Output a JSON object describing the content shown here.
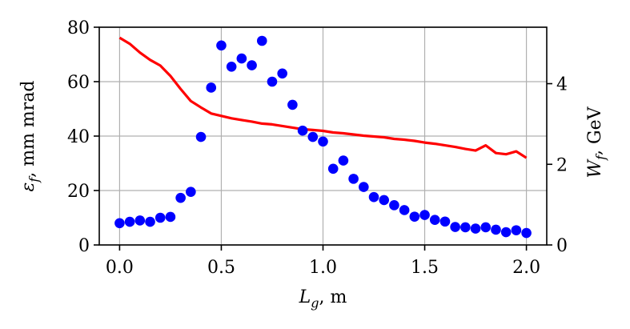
{
  "chart_data": {
    "type": "scatter",
    "grid": true,
    "x_axis": {
      "label_symbol": "L",
      "label_subscript": "g",
      "label_suffix": ", m",
      "range": [
        -0.1,
        2.1
      ],
      "ticks": [
        0.0,
        0.5,
        1.0,
        1.5,
        2.0
      ],
      "tick_labels": [
        "0.0",
        "0.5",
        "1.0",
        "1.5",
        "2.0"
      ]
    },
    "y_axis_left": {
      "label_symbol": "ε",
      "label_subscript": "f",
      "label_suffix": ", mm mrad",
      "range": [
        0,
        80
      ],
      "ticks": [
        0,
        20,
        40,
        60,
        80
      ],
      "tick_labels": [
        "0",
        "20",
        "40",
        "60",
        "80"
      ]
    },
    "y_axis_right": {
      "label_symbol": "W",
      "label_subscript": "f",
      "label_suffix": ", GeV",
      "range": [
        0,
        5.4
      ],
      "ticks": [
        0,
        2,
        4
      ],
      "tick_labels": [
        "0",
        "2",
        "4"
      ]
    },
    "series": [
      {
        "type": "scatter",
        "axis": "left",
        "color": "#0000ff",
        "x": [
          0.0,
          0.05,
          0.1,
          0.15,
          0.2,
          0.25,
          0.3,
          0.35,
          0.4,
          0.45,
          0.5,
          0.55,
          0.6,
          0.65,
          0.7,
          0.75,
          0.8,
          0.85,
          0.9,
          0.95,
          1.0,
          1.05,
          1.1,
          1.15,
          1.2,
          1.25,
          1.3,
          1.35,
          1.4,
          1.45,
          1.5,
          1.55,
          1.6,
          1.65,
          1.7,
          1.75,
          1.8,
          1.85,
          1.9,
          1.95,
          2.0
        ],
        "y": [
          8,
          8.5,
          9,
          8.5,
          10,
          10.3,
          17.3,
          19.5,
          39.7,
          57.8,
          73.3,
          65.5,
          68.5,
          66,
          75,
          60,
          63,
          51.5,
          42,
          39.7,
          38,
          28,
          31,
          24.3,
          21.3,
          17.6,
          16.5,
          14.6,
          12.8,
          10.4,
          11,
          9.2,
          8.6,
          6.6,
          6.5,
          6,
          6.5,
          5.6,
          4.7,
          5.4,
          4.4
        ]
      },
      {
        "type": "line",
        "axis": "right",
        "color": "#ff0000",
        "x": [
          0.0,
          0.05,
          0.1,
          0.15,
          0.2,
          0.25,
          0.3,
          0.35,
          0.4,
          0.45,
          0.5,
          0.55,
          0.6,
          0.65,
          0.7,
          0.75,
          0.8,
          0.85,
          0.9,
          0.95,
          1.0,
          1.05,
          1.1,
          1.15,
          1.2,
          1.25,
          1.3,
          1.35,
          1.4,
          1.45,
          1.5,
          1.55,
          1.6,
          1.65,
          1.7,
          1.75,
          1.8,
          1.85,
          1.9,
          1.95,
          2.0
        ],
        "y": [
          5.14,
          4.99,
          4.77,
          4.59,
          4.45,
          4.19,
          3.87,
          3.57,
          3.41,
          3.26,
          3.2,
          3.14,
          3.1,
          3.06,
          3.01,
          2.99,
          2.95,
          2.91,
          2.87,
          2.85,
          2.83,
          2.79,
          2.77,
          2.74,
          2.71,
          2.69,
          2.67,
          2.63,
          2.61,
          2.58,
          2.54,
          2.51,
          2.47,
          2.43,
          2.38,
          2.34,
          2.47,
          2.28,
          2.25,
          2.32,
          2.16
        ]
      }
    ]
  }
}
